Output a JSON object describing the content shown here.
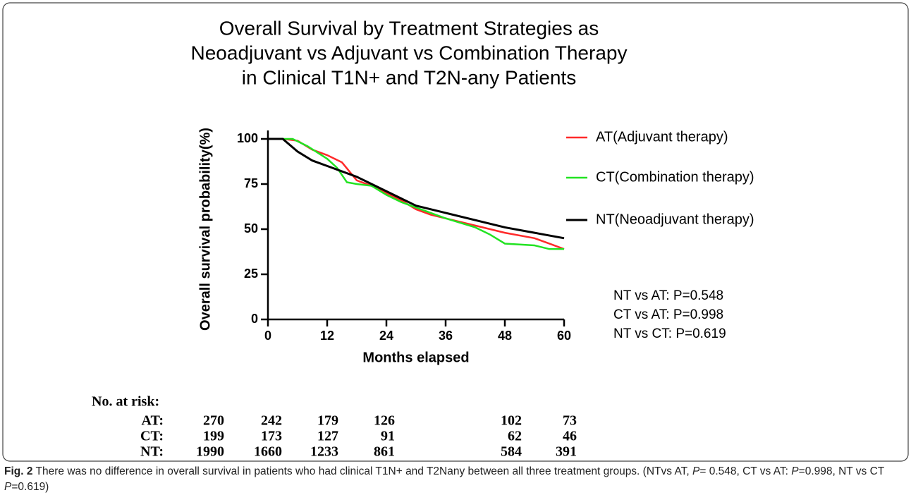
{
  "chart_data": {
    "type": "line",
    "title": [
      "Overall Survival by Treatment Strategies as",
      "Neoadjuvant vs Adjuvant vs Combination Therapy",
      "in Clinical T1N+ and T2N-any Patients"
    ],
    "xlabel": "Months elapsed",
    "ylabel": "Overall survival probability(%)",
    "xlim": [
      0,
      60
    ],
    "ylim": [
      0,
      100
    ],
    "xticks": [
      0,
      12,
      24,
      36,
      48,
      60
    ],
    "yticks": [
      0,
      25,
      50,
      75,
      100
    ],
    "series": [
      {
        "name": "AT(Adjuvant therapy)",
        "color": "#ff2a2a",
        "x": [
          0,
          3,
          6,
          9,
          12,
          15,
          18,
          21,
          24,
          27,
          30,
          33,
          36,
          42,
          48,
          54,
          57,
          60
        ],
        "values": [
          100,
          100,
          99,
          94,
          91,
          87,
          77,
          74,
          70,
          66,
          61,
          58,
          56,
          52,
          48,
          45,
          42,
          39
        ]
      },
      {
        "name": "CT(Combination therapy)",
        "color": "#22e322",
        "x": [
          0,
          5,
          8,
          12,
          14,
          16,
          18,
          21,
          24,
          27,
          30,
          36,
          42,
          45,
          48,
          54,
          57,
          60
        ],
        "values": [
          100,
          100,
          96,
          89,
          84,
          76,
          75,
          74,
          69,
          65,
          62,
          56,
          51,
          47,
          42,
          41,
          39,
          39
        ]
      },
      {
        "name": "NT(Neoadjuvant therapy)",
        "color": "#000000",
        "x": [
          0,
          3,
          6,
          9,
          12,
          15,
          18,
          21,
          24,
          27,
          30,
          33,
          36,
          42,
          48,
          54,
          60
        ],
        "values": [
          100,
          100,
          93,
          88,
          85,
          82,
          79,
          75,
          71,
          67,
          63,
          61,
          59,
          55,
          51,
          48,
          45
        ]
      }
    ],
    "annotations": [
      "NT vs AT: P=0.548",
      "CT vs AT: P=0.998",
      "NT vs CT: P=0.619"
    ]
  },
  "risk_table": {
    "title": "No. at risk:",
    "rows": [
      {
        "label": "AT:",
        "values": [
          270,
          242,
          179,
          126,
          102,
          73
        ]
      },
      {
        "label": "CT:",
        "values": [
          199,
          173,
          127,
          91,
          62,
          46
        ]
      },
      {
        "label": "NT:",
        "values": [
          1990,
          1660,
          1233,
          861,
          584,
          391
        ]
      }
    ]
  },
  "caption": {
    "label": "Fig. 2",
    "parts": [
      "There was no difference in overall survival in patients who had clinical T1N+ and T2Nany between all three treatment groups. (NTvs AT, ",
      "P",
      "= 0.548, CT vs AT: ",
      "P",
      "=0.998, NT vs CT ",
      "P",
      "=0.619)"
    ]
  }
}
